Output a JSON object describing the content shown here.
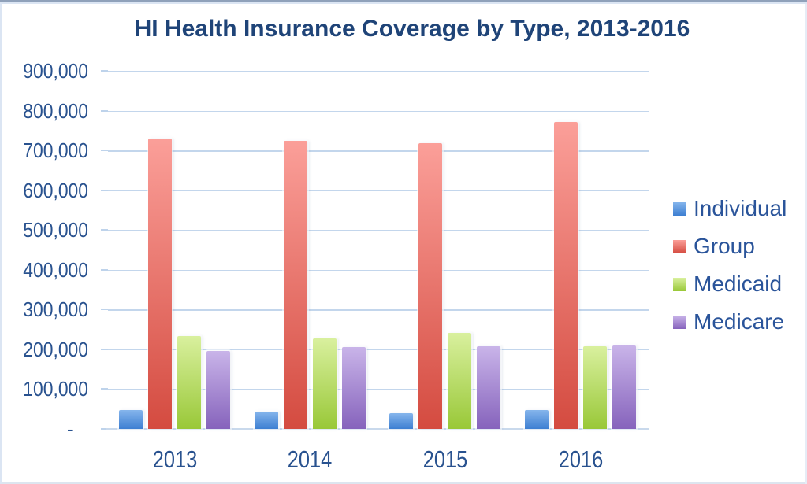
{
  "chart_data": {
    "type": "bar",
    "title": "HI Health Insurance Coverage by Type, 2013-2016",
    "categories": [
      "2013",
      "2014",
      "2015",
      "2016"
    ],
    "series": [
      {
        "name": "Individual",
        "color_top": "#85B5EC",
        "color_bottom": "#3D7FD2",
        "values": [
          47000,
          43000,
          39000,
          48000
        ]
      },
      {
        "name": "Group",
        "color_top": "#FB9F99",
        "color_bottom": "#D44B40",
        "values": [
          730000,
          724000,
          719000,
          771000
        ]
      },
      {
        "name": "Medicaid",
        "color_top": "#D9F09E",
        "color_bottom": "#99C838",
        "values": [
          233000,
          228000,
          242000,
          208000
        ]
      },
      {
        "name": "Medicare",
        "color_top": "#C9B4E9",
        "color_bottom": "#8663BC",
        "values": [
          196000,
          205000,
          207000,
          210000
        ]
      }
    ],
    "y_ticks": [
      "900,000",
      "800,000",
      "700,000",
      "600,000",
      "500,000",
      "400,000",
      "300,000",
      "200,000",
      "100,000",
      "-"
    ],
    "ylim": [
      0,
      900000
    ],
    "xlabel": "",
    "ylabel": "",
    "grid": "horizontal",
    "legend_position": "right",
    "text_color": "#29528F",
    "gridline_color": "#C3D6EC",
    "axis_line_color": "#C9D9EC"
  }
}
